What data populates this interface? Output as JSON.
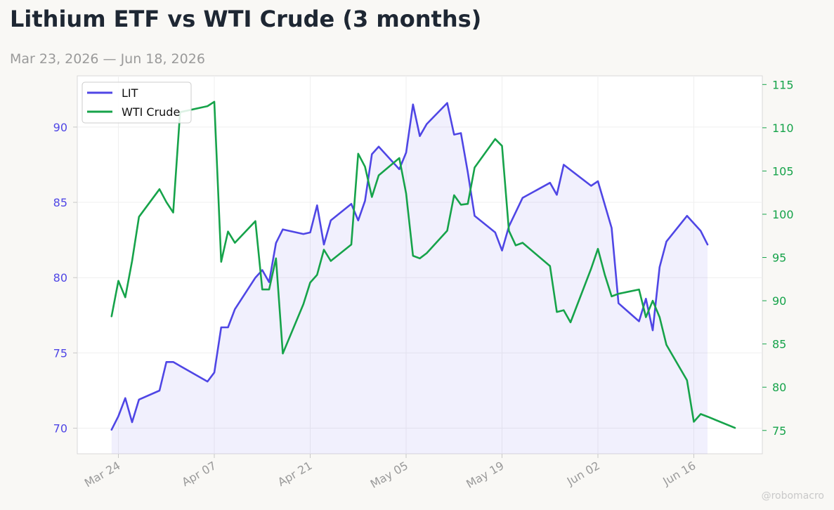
{
  "header": {
    "title": "Lithium ETF vs WTI Crude (3 months)",
    "subtitle": "Mar 23, 2026 — Jun 18, 2026"
  },
  "watermark": "@robomacro",
  "chart_data": {
    "type": "line",
    "title": "Lithium ETF vs WTI Crude (3 months)",
    "subtitle": "Mar 23, 2026 — Jun 18, 2026",
    "x_ticks": [
      "2026-03-24",
      "2026-04-07",
      "2026-04-21",
      "2026-05-05",
      "2026-05-19",
      "2026-06-02",
      "2026-06-16"
    ],
    "x_tick_labels": [
      "Mar 24",
      "Apr 07",
      "Apr 21",
      "May 05",
      "May 19",
      "Jun 02",
      "Jun 16"
    ],
    "x_range": [
      "2026-03-18",
      "2026-06-26"
    ],
    "y_left": {
      "range": [
        68.3,
        93.4
      ],
      "ticks": [
        70,
        75,
        80,
        85,
        90
      ],
      "color": "#4f46e5"
    },
    "y_right": {
      "range": [
        72.3,
        116.0
      ],
      "ticks": [
        75,
        80,
        85,
        90,
        95,
        100,
        105,
        110,
        115
      ],
      "color": "#16a34a"
    },
    "grid": true,
    "legend": {
      "position": "top-left",
      "entries": [
        "LIT",
        "WTI Crude"
      ]
    },
    "series": [
      {
        "name": "LIT",
        "axis": "left",
        "color": "#4f46e5",
        "fill": true,
        "x": [
          "2026-03-23",
          "2026-03-24",
          "2026-03-25",
          "2026-03-26",
          "2026-03-27",
          "2026-03-30",
          "2026-03-31",
          "2026-04-01",
          "2026-04-06",
          "2026-04-07",
          "2026-04-08",
          "2026-04-09",
          "2026-04-10",
          "2026-04-13",
          "2026-04-14",
          "2026-04-15",
          "2026-04-16",
          "2026-04-17",
          "2026-04-20",
          "2026-04-21",
          "2026-04-22",
          "2026-04-23",
          "2026-04-24",
          "2026-04-27",
          "2026-04-28",
          "2026-04-29",
          "2026-04-30",
          "2026-05-01",
          "2026-05-04",
          "2026-05-05",
          "2026-05-06",
          "2026-05-07",
          "2026-05-08",
          "2026-05-11",
          "2026-05-12",
          "2026-05-13",
          "2026-05-14",
          "2026-05-15",
          "2026-05-18",
          "2026-05-19",
          "2026-05-20",
          "2026-05-22",
          "2026-05-26",
          "2026-05-27",
          "2026-05-28",
          "2026-06-01",
          "2026-06-02",
          "2026-06-04",
          "2026-06-05",
          "2026-06-08",
          "2026-06-09",
          "2026-06-10",
          "2026-06-11",
          "2026-06-12",
          "2026-06-15",
          "2026-06-17",
          "2026-06-18"
        ],
        "values": [
          69.9,
          70.8,
          72.0,
          70.4,
          71.9,
          72.5,
          74.4,
          74.4,
          73.1,
          73.7,
          76.7,
          76.7,
          77.9,
          80.0,
          80.5,
          79.7,
          82.3,
          83.2,
          82.9,
          83.0,
          84.8,
          82.2,
          83.8,
          84.9,
          83.8,
          85.1,
          88.2,
          88.7,
          87.2,
          88.3,
          91.5,
          89.4,
          90.2,
          91.6,
          89.5,
          89.6,
          87.0,
          84.1,
          83.0,
          81.8,
          83.4,
          85.3,
          86.3,
          85.5,
          87.5,
          86.1,
          86.4,
          83.3,
          78.3,
          77.1,
          78.6,
          76.5,
          80.7,
          82.4,
          84.1,
          83.1,
          82.2
        ]
      },
      {
        "name": "WTI Crude",
        "axis": "right",
        "color": "#16a34a",
        "fill": false,
        "x": [
          "2026-03-23",
          "2026-03-24",
          "2026-03-25",
          "2026-03-26",
          "2026-03-27",
          "2026-03-30",
          "2026-03-31",
          "2026-04-01",
          "2026-04-02",
          "2026-04-06",
          "2026-04-07",
          "2026-04-08",
          "2026-04-09",
          "2026-04-10",
          "2026-04-13",
          "2026-04-14",
          "2026-04-15",
          "2026-04-16",
          "2026-04-17",
          "2026-04-20",
          "2026-04-21",
          "2026-04-22",
          "2026-04-23",
          "2026-04-24",
          "2026-04-27",
          "2026-04-28",
          "2026-04-29",
          "2026-04-30",
          "2026-05-01",
          "2026-05-04",
          "2026-05-05",
          "2026-05-06",
          "2026-05-07",
          "2026-05-08",
          "2026-05-11",
          "2026-05-12",
          "2026-05-13",
          "2026-05-14",
          "2026-05-15",
          "2026-05-18",
          "2026-05-19",
          "2026-05-20",
          "2026-05-21",
          "2026-05-22",
          "2026-05-26",
          "2026-05-27",
          "2026-05-28",
          "2026-05-29",
          "2026-06-01",
          "2026-06-02",
          "2026-06-03",
          "2026-06-04",
          "2026-06-05",
          "2026-06-08",
          "2026-06-09",
          "2026-06-10",
          "2026-06-11",
          "2026-06-12",
          "2026-06-15",
          "2026-06-16",
          "2026-06-17",
          "2026-06-18",
          "2026-06-22"
        ],
        "values": [
          88.2,
          92.3,
          90.4,
          94.6,
          99.7,
          102.9,
          101.4,
          100.2,
          111.8,
          112.5,
          113.0,
          94.5,
          98.0,
          96.7,
          99.2,
          91.3,
          91.3,
          94.9,
          83.9,
          89.6,
          92.1,
          93.0,
          95.9,
          94.6,
          96.5,
          107.0,
          105.5,
          102.0,
          104.5,
          106.5,
          102.4,
          95.2,
          94.9,
          95.5,
          98.1,
          102.2,
          101.1,
          101.2,
          105.4,
          108.7,
          107.9,
          98.1,
          96.4,
          96.7,
          94.0,
          88.7,
          88.9,
          87.5,
          93.7,
          96.0,
          93.0,
          90.5,
          90.8,
          91.3,
          88.1,
          90.0,
          88.1,
          84.9,
          80.8,
          76.0,
          76.9,
          76.6,
          75.3
        ]
      }
    ]
  }
}
